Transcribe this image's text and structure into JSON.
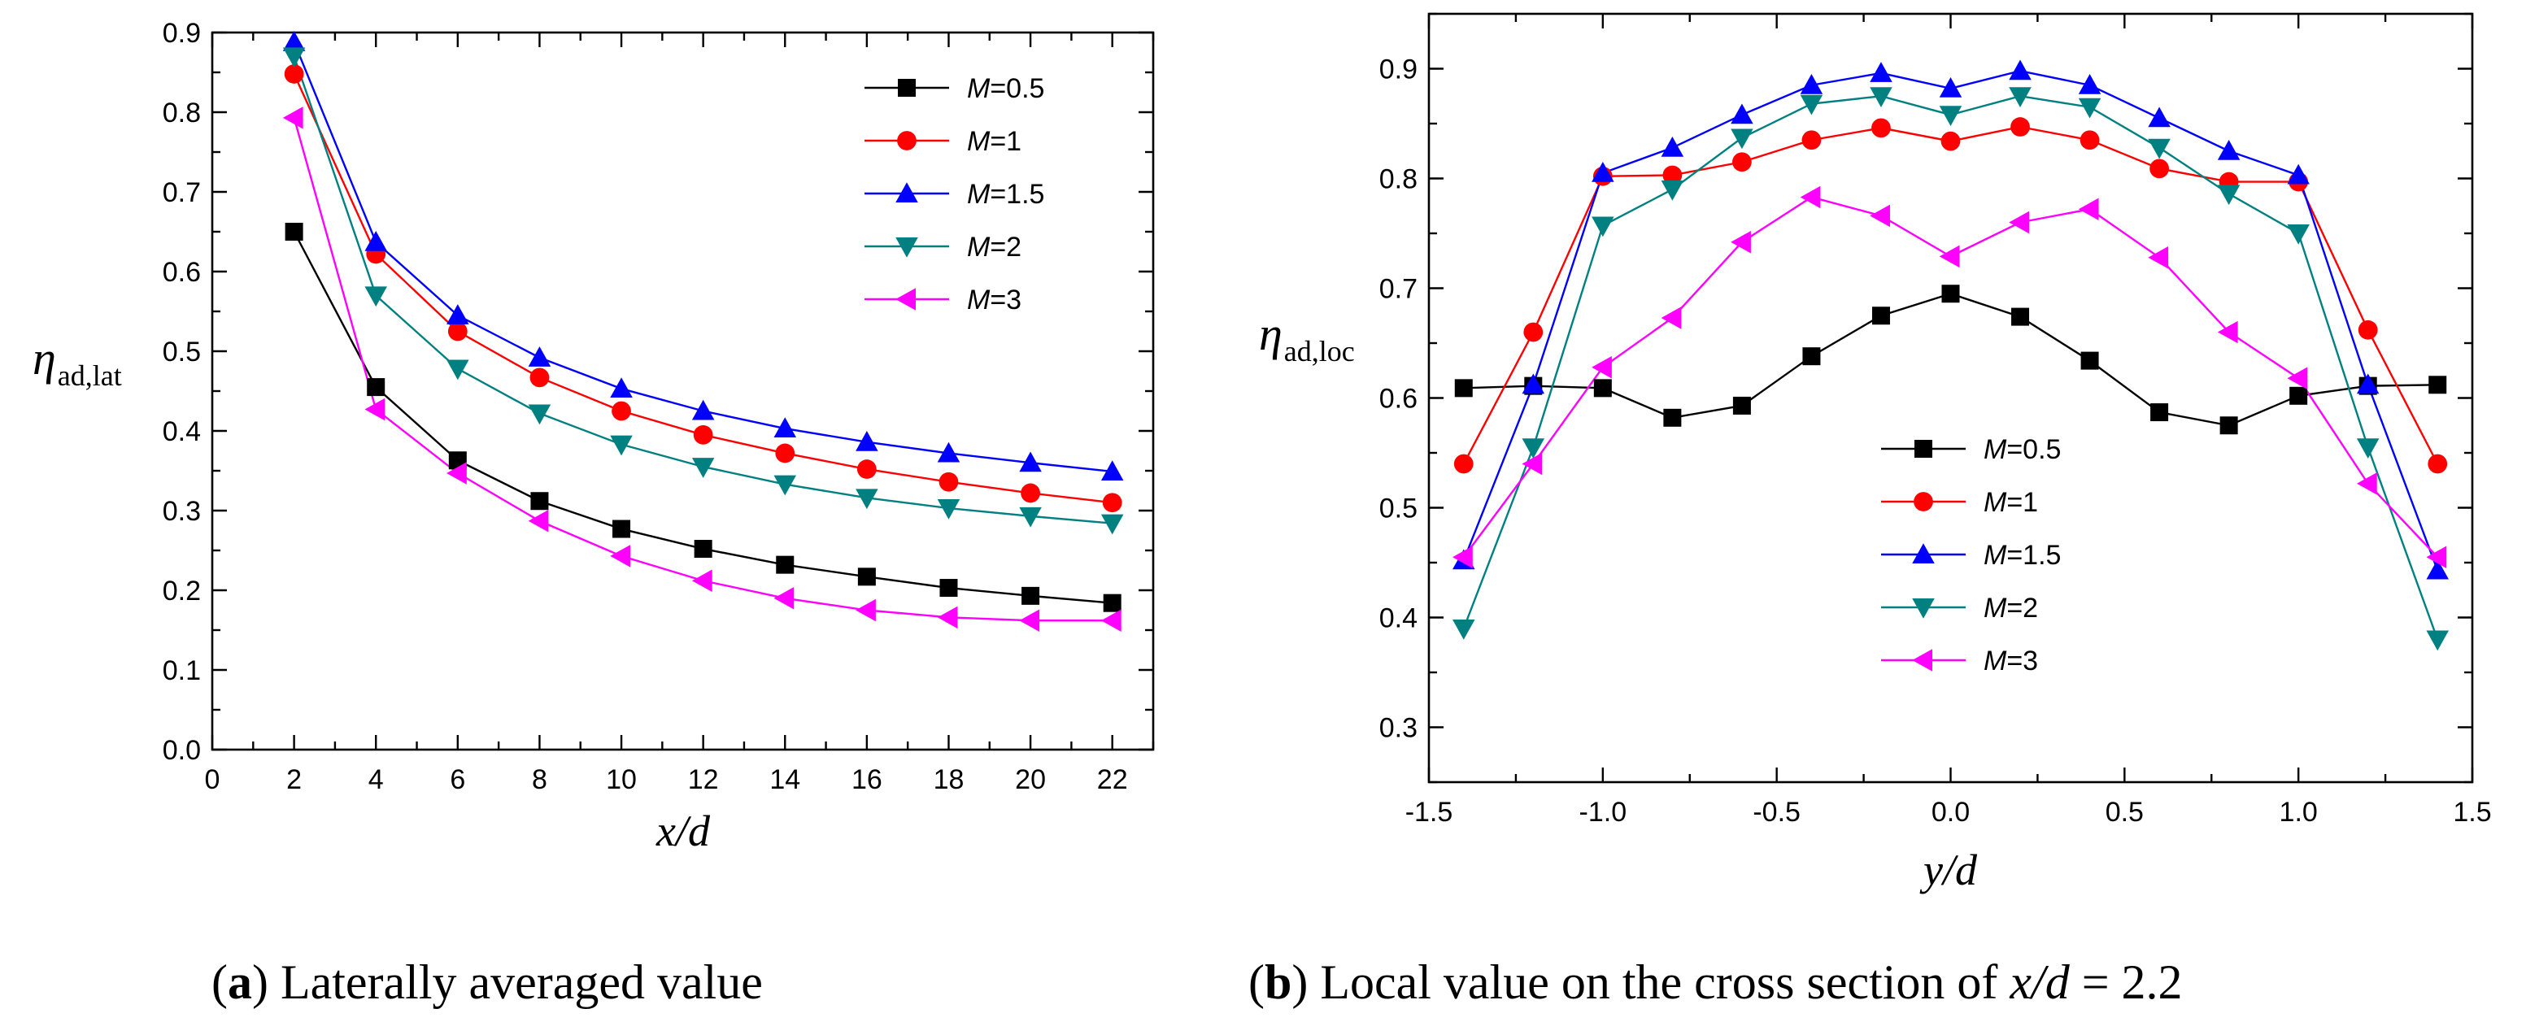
{
  "chart_data": [
    {
      "type": "line",
      "panel": "a",
      "caption_label": "a",
      "caption_text": "Laterally averaged value",
      "xlabel": "x/d",
      "ylabel_main": "η",
      "ylabel_sub": "ad,lat",
      "xlim": [
        0,
        23
      ],
      "ylim": [
        0,
        0.9
      ],
      "xticks": [
        0,
        2,
        4,
        6,
        8,
        10,
        12,
        14,
        16,
        18,
        20,
        22
      ],
      "xtick_labels": [
        "0",
        "2",
        "4",
        "6",
        "8",
        "10",
        "12",
        "14",
        "16",
        "18",
        "20",
        "22"
      ],
      "yticks": [
        0.0,
        0.1,
        0.2,
        0.3,
        0.4,
        0.5,
        0.6,
        0.7,
        0.8,
        0.9
      ],
      "ytick_labels": [
        "0.0",
        "0.1",
        "0.2",
        "0.3",
        "0.4",
        "0.5",
        "0.6",
        "0.7",
        "0.8",
        "0.9"
      ],
      "legend_position": "top-right",
      "x": [
        2,
        4,
        6,
        8,
        10,
        12,
        14,
        16,
        18,
        20,
        22
      ],
      "series": [
        {
          "name": "M=0.5",
          "var": "M",
          "val": "=0.5",
          "color": "#000000",
          "marker": "square",
          "values": [
            0.65,
            0.455,
            0.363,
            0.312,
            0.277,
            0.252,
            0.232,
            0.217,
            0.203,
            0.193,
            0.184
          ]
        },
        {
          "name": "M=1",
          "var": "M",
          "val": "=1",
          "color": "#ff0000",
          "marker": "circle",
          "values": [
            0.848,
            0.622,
            0.525,
            0.467,
            0.425,
            0.395,
            0.372,
            0.352,
            0.336,
            0.322,
            0.31
          ]
        },
        {
          "name": "M=1.5",
          "var": "M",
          "val": "=1.5",
          "color": "#0000ff",
          "marker": "triangle-up",
          "values": [
            0.888,
            0.637,
            0.545,
            0.492,
            0.453,
            0.425,
            0.403,
            0.386,
            0.372,
            0.36,
            0.349
          ]
        },
        {
          "name": "M=2",
          "var": "M",
          "val": "=2",
          "color": "#008080",
          "marker": "triangle-down",
          "values": [
            0.87,
            0.57,
            0.478,
            0.422,
            0.383,
            0.355,
            0.333,
            0.316,
            0.303,
            0.293,
            0.284
          ]
        },
        {
          "name": "M=3",
          "var": "M",
          "val": "=3",
          "color": "#ff00ff",
          "marker": "triangle-left",
          "values": [
            0.793,
            0.427,
            0.347,
            0.287,
            0.243,
            0.212,
            0.19,
            0.175,
            0.166,
            0.162,
            0.162
          ]
        }
      ]
    },
    {
      "type": "line",
      "panel": "b",
      "caption_label": "b",
      "caption_text": "Local value on the cross section of",
      "caption_var": "x/d",
      "caption_eq": " = 2.2",
      "xlabel": "y/d",
      "ylabel_main": "η",
      "ylabel_sub": "ad,loc",
      "xlim": [
        -1.5,
        1.5
      ],
      "ylim": [
        0.25,
        0.95
      ],
      "xticks": [
        -1.5,
        -1.0,
        -0.5,
        0.0,
        0.5,
        1.0,
        1.5
      ],
      "xtick_labels": [
        "-1.5",
        "-1.0",
        "-0.5",
        "0.0",
        "0.5",
        "1.0",
        "1.5"
      ],
      "yticks": [
        0.3,
        0.4,
        0.5,
        0.6,
        0.7,
        0.8,
        0.9
      ],
      "ytick_labels": [
        "0.3",
        "0.4",
        "0.5",
        "0.6",
        "0.7",
        "0.8",
        "0.9"
      ],
      "legend_position": "lower-center",
      "x": [
        -1.4,
        -1.2,
        -1.0,
        -0.8,
        -0.6,
        -0.4,
        -0.2,
        0.0,
        0.2,
        0.4,
        0.6,
        0.8,
        1.0,
        1.2,
        1.4
      ],
      "series": [
        {
          "name": "M=0.5",
          "var": "M",
          "val": "=0.5",
          "color": "#000000",
          "marker": "square",
          "values": [
            0.609,
            0.611,
            0.609,
            0.582,
            0.593,
            0.638,
            0.675,
            0.695,
            0.674,
            0.634,
            0.587,
            0.575,
            0.602,
            0.611,
            0.612
          ]
        },
        {
          "name": "M=1",
          "var": "M",
          "val": "=1",
          "color": "#ff0000",
          "marker": "circle",
          "values": [
            0.54,
            0.66,
            0.802,
            0.803,
            0.815,
            0.835,
            0.846,
            0.834,
            0.847,
            0.835,
            0.809,
            0.797,
            0.797,
            0.662,
            0.54
          ]
        },
        {
          "name": "M=1.5",
          "var": "M",
          "val": "=1.5",
          "color": "#0000ff",
          "marker": "triangle-up",
          "values": [
            0.452,
            0.612,
            0.805,
            0.828,
            0.858,
            0.885,
            0.896,
            0.882,
            0.898,
            0.885,
            0.855,
            0.825,
            0.803,
            0.612,
            0.443
          ]
        },
        {
          "name": "M=2",
          "var": "M",
          "val": "=2",
          "color": "#008080",
          "marker": "triangle-down",
          "values": [
            0.39,
            0.555,
            0.757,
            0.79,
            0.837,
            0.868,
            0.875,
            0.858,
            0.875,
            0.865,
            0.828,
            0.786,
            0.75,
            0.555,
            0.38
          ]
        },
        {
          "name": "M=3",
          "var": "M",
          "val": "=3",
          "color": "#ff00ff",
          "marker": "triangle-left",
          "values": [
            0.455,
            0.54,
            0.628,
            0.673,
            0.742,
            0.783,
            0.766,
            0.729,
            0.76,
            0.772,
            0.728,
            0.66,
            0.618,
            0.522,
            0.455
          ]
        }
      ]
    }
  ]
}
